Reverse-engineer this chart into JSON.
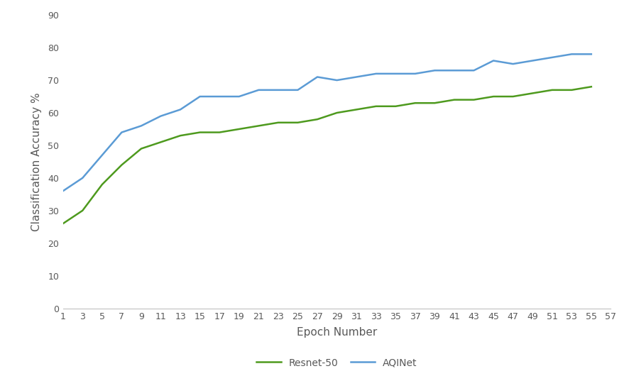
{
  "epochs": [
    1,
    3,
    5,
    7,
    9,
    11,
    13,
    15,
    17,
    19,
    21,
    23,
    25,
    27,
    29,
    31,
    33,
    35,
    37,
    39,
    41,
    43,
    45,
    47,
    49,
    51,
    53,
    55
  ],
  "resnet50": [
    26,
    30,
    38,
    44,
    49,
    51,
    53,
    54,
    54,
    55,
    56,
    57,
    57,
    58,
    60,
    61,
    62,
    62,
    63,
    63,
    64,
    64,
    65,
    65,
    66,
    67,
    67,
    68
  ],
  "aqinet": [
    36,
    40,
    47,
    54,
    56,
    59,
    61,
    65,
    65,
    65,
    67,
    67,
    67,
    71,
    70,
    71,
    72,
    72,
    72,
    73,
    73,
    73,
    76,
    75,
    76,
    77,
    78,
    78
  ],
  "resnet50_color": "#4e9a1e",
  "aqinet_color": "#5b9bd5",
  "xlabel": "Epoch Number",
  "ylabel": "Classification Accuracy %",
  "ylim": [
    0,
    90
  ],
  "yticks": [
    0,
    10,
    20,
    30,
    40,
    50,
    60,
    70,
    80,
    90
  ],
  "xticks": [
    1,
    3,
    5,
    7,
    9,
    11,
    13,
    15,
    17,
    19,
    21,
    23,
    25,
    27,
    29,
    31,
    33,
    35,
    37,
    39,
    41,
    43,
    45,
    47,
    49,
    51,
    53,
    55,
    57
  ],
  "legend_resnet": "Resnet-50",
  "legend_aqinet": "AQINet",
  "line_width": 1.8,
  "bg_color": "#ffffff",
  "font_color": "#595959",
  "axis_color": "#bfbfbf",
  "font_size_ticks": 9,
  "font_size_label": 11
}
